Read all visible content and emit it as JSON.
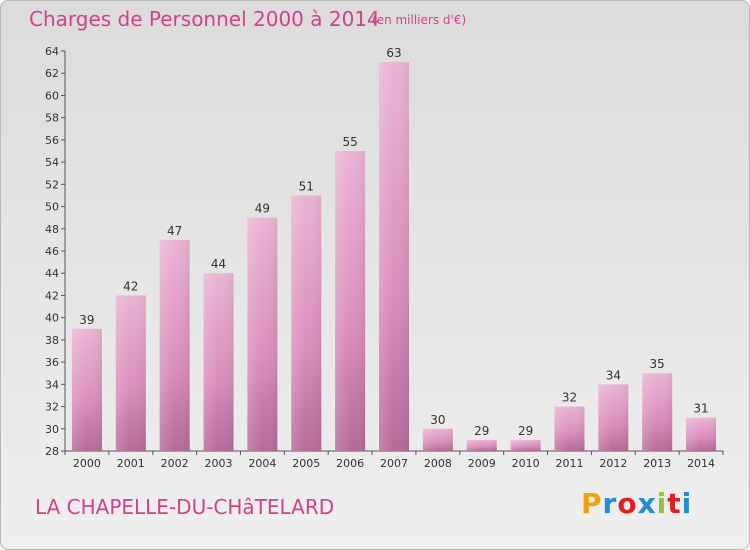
{
  "header": {
    "title": "Charges de Personnel 2000 à 2014",
    "subtitle": "(en milliers d'€)"
  },
  "footer": {
    "commune": "LA CHAPELLE-DU-CHâTELARD",
    "logo": "Proxiti",
    "logo_colors": [
      "#f4a20a",
      "#1e8fd6",
      "#e02020",
      "#1e8fd6",
      "#8cc63f",
      "#e02020",
      "#1e8fd6"
    ]
  },
  "colors": {
    "bar_light": "#eab3d4",
    "bar_mid": "#d98dbb",
    "bar_dark": "#b56a98",
    "title": "#d4408a"
  },
  "chart_data": {
    "type": "bar",
    "title": "Charges de Personnel 2000 à 2014",
    "subtitle": "(en milliers d'€)",
    "categories": [
      "2000",
      "2001",
      "2002",
      "2003",
      "2004",
      "2005",
      "2006",
      "2007",
      "2008",
      "2009",
      "2010",
      "2011",
      "2012",
      "2013",
      "2014"
    ],
    "values": [
      39,
      42,
      47,
      44,
      49,
      51,
      55,
      63,
      30,
      29,
      29,
      32,
      34,
      35,
      31
    ],
    "ylim": [
      28,
      64
    ],
    "yticks": [
      28,
      30,
      32,
      34,
      36,
      38,
      40,
      42,
      44,
      46,
      48,
      50,
      52,
      54,
      56,
      58,
      60,
      62,
      64
    ],
    "grid": false,
    "xlabel": "",
    "ylabel": ""
  }
}
